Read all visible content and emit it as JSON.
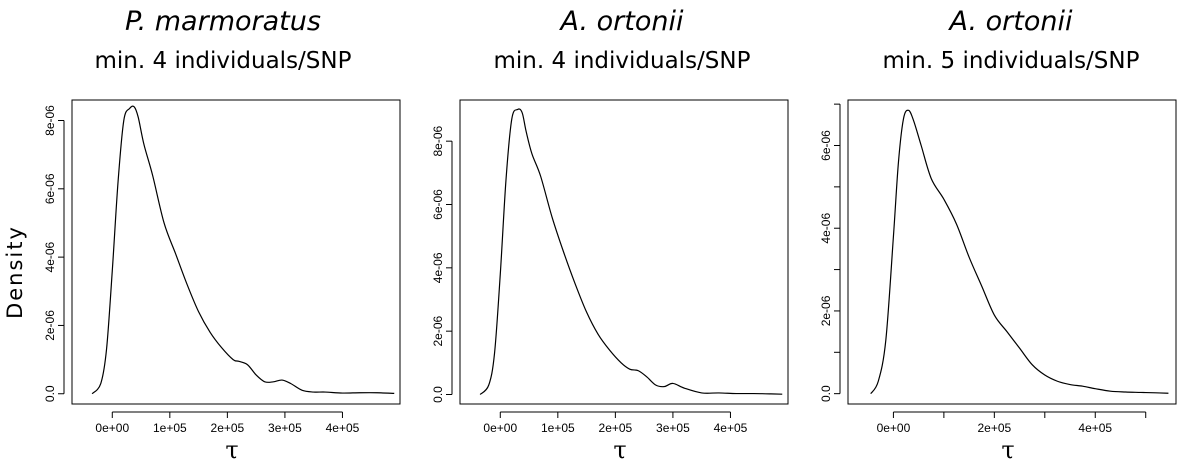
{
  "figure": {
    "ylabel": "Density",
    "xlabel": "τ"
  },
  "chart_data": [
    {
      "type": "line",
      "title": "P. marmoratus",
      "subtitle": "min. 4 individuals/SNP",
      "xlabel": "τ",
      "ylabel": "Density",
      "xlim": [
        -70000,
        500000
      ],
      "ylim": [
        -3e-07,
        8.6e-06
      ],
      "x_ticks": [
        0,
        100000,
        200000,
        300000,
        400000
      ],
      "x_tick_labels": [
        "0e+00",
        "1e+05",
        "2e+05",
        "3e+05",
        "4e+05"
      ],
      "y_ticks": [
        0,
        2e-06,
        4e-06,
        6e-06,
        8e-06
      ],
      "y_tick_labels": [
        "0.0",
        "2e-06",
        "4e-06",
        "6e-06",
        "8e-06"
      ],
      "series": [
        {
          "x": [
            -35000,
            -20000,
            -10000,
            0,
            10000,
            20000,
            30000,
            38000,
            45000,
            55000,
            70000,
            90000,
            110000,
            130000,
            150000,
            170000,
            190000,
            210000,
            220000,
            235000,
            250000,
            265000,
            280000,
            295000,
            310000,
            330000,
            350000,
            370000,
            400000,
            430000,
            460000,
            490000
          ],
          "y": [
            0.0,
            3e-07,
            1.3e-06,
            3.6e-06,
            6.2e-06,
            8e-06,
            8.35e-06,
            8.4e-06,
            8.1e-06,
            7.3e-06,
            6.4e-06,
            5e-06,
            4.1e-06,
            3.2e-06,
            2.4e-06,
            1.8e-06,
            1.35e-06,
            1e-06,
            9.5e-07,
            8.5e-07,
            5.5e-07,
            3.5e-07,
            3.5e-07,
            4e-07,
            3e-07,
            1e-07,
            5e-08,
            5e-08,
            2e-08,
            3e-08,
            3e-08,
            1e-08
          ]
        }
      ]
    },
    {
      "type": "line",
      "title": "A. ortonii",
      "subtitle": "min. 4 individuals/SNP",
      "xlabel": "τ",
      "ylabel": "",
      "xlim": [
        -70000,
        500000
      ],
      "ylim": [
        -3e-07,
        9.3e-06
      ],
      "x_ticks": [
        0,
        100000,
        200000,
        300000,
        400000
      ],
      "x_tick_labels": [
        "0e+00",
        "1e+05",
        "2e+05",
        "3e+05",
        "4e+05"
      ],
      "y_ticks": [
        0,
        2e-06,
        4e-06,
        6e-06,
        8e-06
      ],
      "y_tick_labels": [
        "0.0",
        "2e-06",
        "4e-06",
        "6e-06",
        "8e-06"
      ],
      "series": [
        {
          "x": [
            -35000,
            -20000,
            -10000,
            0,
            10000,
            20000,
            30000,
            38000,
            45000,
            55000,
            70000,
            90000,
            110000,
            130000,
            150000,
            170000,
            190000,
            210000,
            225000,
            240000,
            255000,
            270000,
            285000,
            300000,
            320000,
            350000,
            380000,
            410000,
            440000,
            470000,
            490000
          ],
          "y": [
            0.0,
            3e-07,
            1.3e-06,
            3.8e-06,
            6.8e-06,
            8.7e-06,
            9e-06,
            8.9e-06,
            8.3e-06,
            7.6e-06,
            6.9e-06,
            5.6e-06,
            4.5e-06,
            3.5e-06,
            2.6e-06,
            1.9e-06,
            1.4e-06,
            1e-06,
            8e-07,
            7.5e-07,
            5.5e-07,
            3e-07,
            2.5e-07,
            3.5e-07,
            2e-07,
            5e-08,
            5e-08,
            3e-08,
            3e-08,
            2e-08,
            1e-08
          ]
        }
      ]
    },
    {
      "type": "line",
      "title": "A. ortonii",
      "subtitle": "min. 5 individuals/SNP",
      "xlabel": "τ",
      "ylabel": "",
      "xlim": [
        -90000,
        560000
      ],
      "ylim": [
        -2.5e-07,
        7.1e-06
      ],
      "x_ticks": [
        0,
        100000,
        200000,
        300000,
        400000,
        500000
      ],
      "x_tick_labels": [
        "0e+00",
        "",
        "2e+05",
        "",
        "4e+05",
        ""
      ],
      "y_ticks": [
        0,
        1e-06,
        2e-06,
        3e-06,
        4e-06,
        5e-06,
        6e-06,
        7e-06
      ],
      "y_tick_labels": [
        "0.0",
        "",
        "2e-06",
        "",
        "4e-06",
        "",
        "6e-06",
        ""
      ],
      "series": [
        {
          "x": [
            -45000,
            -30000,
            -15000,
            0,
            10000,
            20000,
            30000,
            40000,
            55000,
            75000,
            100000,
            125000,
            150000,
            175000,
            200000,
            225000,
            250000,
            275000,
            300000,
            325000,
            350000,
            375000,
            400000,
            430000,
            460000,
            490000,
            520000,
            545000
          ],
          "y": [
            0.0,
            3e-07,
            1.3e-06,
            3.8e-06,
            5.6e-06,
            6.65e-06,
            6.85e-06,
            6.6e-06,
            6e-06,
            5.2e-06,
            4.7e-06,
            4.1e-06,
            3.3e-06,
            2.6e-06,
            1.9e-06,
            1.5e-06,
            1.1e-06,
            7e-07,
            4.5e-07,
            3e-07,
            2.2e-07,
            1.8e-07,
            1.2e-07,
            6e-08,
            4e-08,
            3e-08,
            2e-08,
            1e-08
          ]
        }
      ]
    }
  ]
}
